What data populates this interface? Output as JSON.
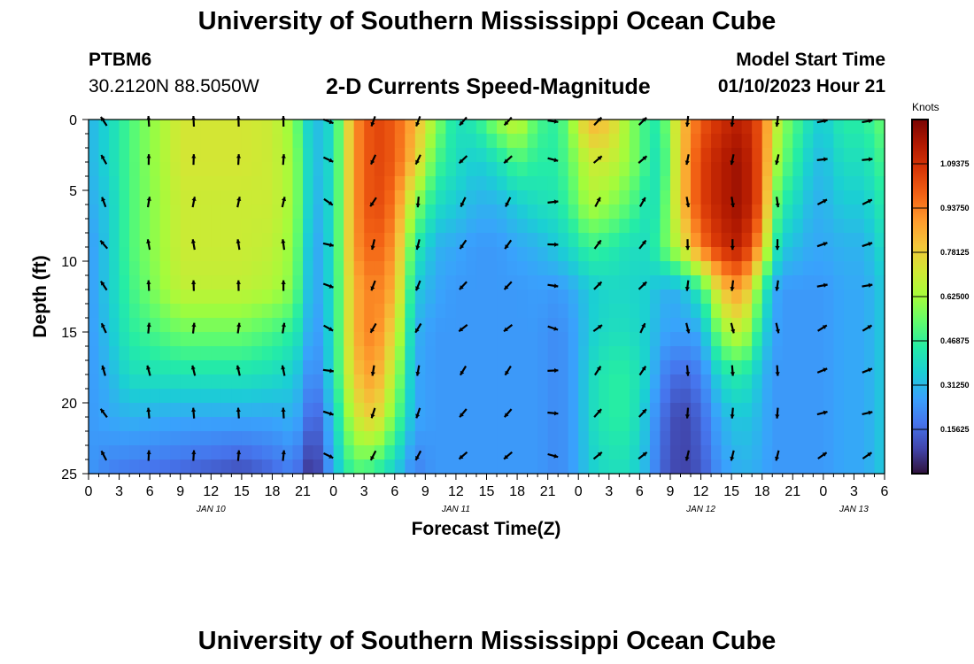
{
  "header": {
    "title": "University of Southern Mississippi Ocean Cube",
    "station": "PTBM6",
    "coords": "30.2120N  88.5050W",
    "subtitle": "2-D Currents Speed-Magnitude",
    "model_start_label": "Model Start Time",
    "model_start_value": "01/10/2023 Hour 21",
    "footer_title": "University of Southern Mississippi Ocean Cube"
  },
  "chart_data": {
    "type": "heatmap",
    "title": "2-D Currents Speed-Magnitude",
    "xlabel": "Forecast Time(Z)",
    "ylabel": "Depth (ft)",
    "x_hours_from_start": [
      0,
      78
    ],
    "x_tick_labels": [
      "0",
      "3",
      "6",
      "9",
      "12",
      "15",
      "18",
      "21",
      "0",
      "3",
      "6",
      "9",
      "12",
      "15",
      "18",
      "21",
      "0",
      "3",
      "6",
      "9",
      "12",
      "15",
      "18",
      "21",
      "0",
      "3",
      "6"
    ],
    "date_labels": [
      {
        "label": "JAN 10",
        "hour": 12
      },
      {
        "label": "JAN 11",
        "hour": 36
      },
      {
        "label": "JAN 12",
        "hour": 60
      },
      {
        "label": "JAN 13",
        "hour": 75
      }
    ],
    "ylim": [
      0,
      25
    ],
    "y_tick_labels": [
      "0",
      "5",
      "10",
      "15",
      "20",
      "25"
    ],
    "y_ticks": [
      0,
      5,
      10,
      15,
      20,
      25
    ],
    "colorbar": {
      "unit": "Knots",
      "min": 0,
      "max": 1.25,
      "tick_values": [
        0.15625,
        0.3125,
        0.46875,
        0.625,
        0.78125,
        0.9375,
        1.09375
      ],
      "tick_labels": [
        "0.15625",
        "0.31250",
        "0.46875",
        "0.62500",
        "0.78125",
        "0.93750",
        "1.09375"
      ]
    },
    "colormap": [
      "#30123b",
      "#4145ab",
      "#4675ed",
      "#39a2fc",
      "#1bcfd4",
      "#24eca6",
      "#61fc6c",
      "#a4fc3b",
      "#d1e834",
      "#f3c63a",
      "#fe9b2d",
      "#f36315",
      "#d93807",
      "#b11901",
      "#7a0403"
    ],
    "speed_control_points": {
      "hours": [
        0,
        2,
        4,
        9,
        15,
        18,
        20,
        21,
        22,
        24,
        26,
        28,
        30,
        32,
        34,
        36,
        38,
        40,
        42,
        44,
        46,
        48,
        49,
        51,
        53,
        55,
        56,
        58,
        60,
        62,
        64,
        66,
        67,
        68,
        70,
        71,
        72,
        74,
        76,
        78
      ],
      "depths": [
        0,
        3,
        6,
        9,
        12,
        15,
        18,
        21,
        25
      ],
      "values_knots": [
        [
          0.3,
          0.38,
          0.5,
          0.72,
          0.72,
          0.7,
          0.6,
          0.45,
          0.3,
          0.4,
          0.9,
          1.05,
          1.0,
          0.85,
          0.6,
          0.4,
          0.45,
          0.6,
          0.7,
          0.5,
          0.45,
          0.7,
          0.85,
          0.8,
          0.6,
          0.45,
          0.45,
          0.8,
          1.0,
          1.1,
          1.15,
          1.0,
          0.75,
          0.6,
          0.45,
          0.38,
          0.35,
          0.45,
          0.45,
          0.55
        ],
        [
          0.3,
          0.38,
          0.5,
          0.72,
          0.72,
          0.7,
          0.62,
          0.48,
          0.3,
          0.4,
          0.9,
          1.05,
          1.0,
          0.8,
          0.5,
          0.4,
          0.35,
          0.4,
          0.5,
          0.45,
          0.45,
          0.6,
          0.7,
          0.7,
          0.6,
          0.45,
          0.4,
          0.8,
          1.05,
          1.15,
          1.2,
          1.0,
          0.7,
          0.55,
          0.4,
          0.33,
          0.32,
          0.4,
          0.4,
          0.5
        ],
        [
          0.28,
          0.35,
          0.5,
          0.7,
          0.7,
          0.7,
          0.62,
          0.48,
          0.28,
          0.4,
          0.9,
          1.05,
          0.95,
          0.6,
          0.4,
          0.35,
          0.3,
          0.3,
          0.35,
          0.4,
          0.42,
          0.55,
          0.65,
          0.6,
          0.52,
          0.4,
          0.45,
          0.8,
          1.05,
          1.15,
          1.2,
          1.0,
          0.6,
          0.45,
          0.35,
          0.3,
          0.3,
          0.35,
          0.35,
          0.45
        ],
        [
          0.25,
          0.35,
          0.5,
          0.7,
          0.7,
          0.68,
          0.6,
          0.45,
          0.25,
          0.4,
          0.9,
          1.0,
          0.9,
          0.45,
          0.3,
          0.28,
          0.25,
          0.25,
          0.28,
          0.3,
          0.35,
          0.42,
          0.48,
          0.45,
          0.4,
          0.4,
          0.5,
          0.7,
          0.95,
          1.1,
          1.15,
          0.85,
          0.5,
          0.35,
          0.3,
          0.28,
          0.28,
          0.3,
          0.3,
          0.4
        ],
        [
          0.25,
          0.35,
          0.48,
          0.68,
          0.68,
          0.65,
          0.58,
          0.42,
          0.25,
          0.4,
          0.85,
          0.95,
          0.85,
          0.35,
          0.28,
          0.25,
          0.25,
          0.25,
          0.25,
          0.26,
          0.25,
          0.3,
          0.35,
          0.38,
          0.38,
          0.36,
          0.3,
          0.3,
          0.45,
          0.8,
          0.9,
          0.5,
          0.3,
          0.25,
          0.25,
          0.25,
          0.25,
          0.28,
          0.28,
          0.35
        ],
        [
          0.25,
          0.33,
          0.45,
          0.55,
          0.55,
          0.5,
          0.45,
          0.38,
          0.22,
          0.4,
          0.85,
          0.95,
          0.75,
          0.3,
          0.25,
          0.25,
          0.25,
          0.25,
          0.25,
          0.25,
          0.22,
          0.28,
          0.35,
          0.4,
          0.4,
          0.35,
          0.28,
          0.26,
          0.28,
          0.6,
          0.7,
          0.4,
          0.28,
          0.25,
          0.25,
          0.25,
          0.25,
          0.28,
          0.28,
          0.35
        ],
        [
          0.25,
          0.3,
          0.4,
          0.42,
          0.42,
          0.4,
          0.36,
          0.3,
          0.18,
          0.4,
          0.8,
          0.9,
          0.65,
          0.28,
          0.25,
          0.25,
          0.25,
          0.25,
          0.25,
          0.25,
          0.22,
          0.28,
          0.38,
          0.45,
          0.45,
          0.35,
          0.22,
          0.15,
          0.2,
          0.4,
          0.45,
          0.32,
          0.25,
          0.25,
          0.25,
          0.25,
          0.25,
          0.28,
          0.28,
          0.35
        ],
        [
          0.25,
          0.28,
          0.3,
          0.28,
          0.28,
          0.28,
          0.3,
          0.25,
          0.1,
          0.35,
          0.7,
          0.8,
          0.55,
          0.28,
          0.25,
          0.25,
          0.25,
          0.25,
          0.25,
          0.25,
          0.22,
          0.28,
          0.38,
          0.45,
          0.45,
          0.3,
          0.18,
          0.08,
          0.15,
          0.3,
          0.35,
          0.3,
          0.25,
          0.25,
          0.25,
          0.25,
          0.25,
          0.28,
          0.28,
          0.35
        ],
        [
          0.25,
          0.2,
          0.18,
          0.15,
          0.1,
          0.15,
          0.2,
          0.12,
          0.02,
          0.3,
          0.5,
          0.45,
          0.35,
          0.2,
          0.25,
          0.25,
          0.25,
          0.25,
          0.25,
          0.25,
          0.22,
          0.28,
          0.35,
          0.4,
          0.4,
          0.28,
          0.15,
          0.08,
          0.12,
          0.25,
          0.3,
          0.28,
          0.25,
          0.25,
          0.25,
          0.25,
          0.25,
          0.28,
          0.28,
          0.35
        ]
      ]
    }
  }
}
